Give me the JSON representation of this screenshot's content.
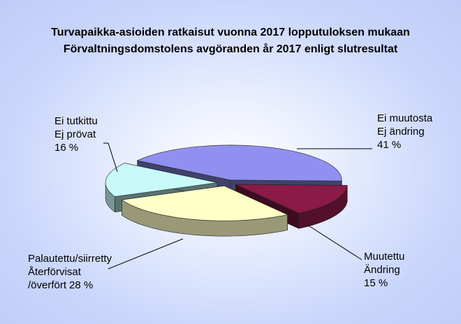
{
  "chart_data": {
    "type": "pie",
    "title": "Turvapaikka-asioiden ratkaisut vuonna 2017 lopputuloksen mukaan",
    "subtitle": "Förvaltningsdomstolens avgöranden år 2017 enligt slutresultat",
    "categories": [
      "Ei muutosta\nEj ändring",
      "Muutettu\nÄndring",
      "Palautettu/siirretty\nÅterförvisat\n/överfört",
      "Ei tutkittu\nEj prövat"
    ],
    "values": [
      41,
      15,
      28,
      16
    ],
    "value_labels": [
      "41 %",
      "15 %",
      "28 %",
      "16 %"
    ],
    "colors": [
      "#9090f0",
      "#8a1a48",
      "#ffffc8",
      "#c8fafa"
    ]
  }
}
